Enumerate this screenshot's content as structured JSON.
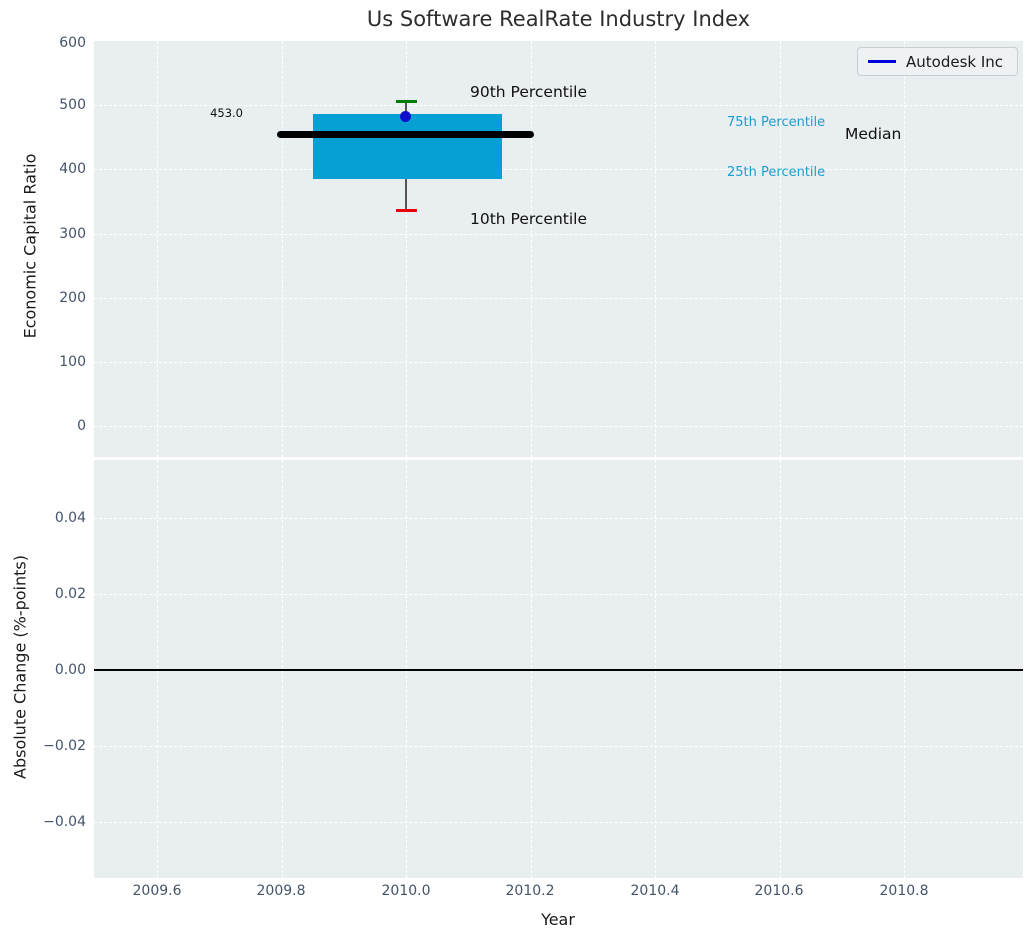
{
  "title": "Us Software RealRate Industry Index",
  "legend": {
    "label": "Autodesk Inc",
    "line_color": "#0000dd"
  },
  "colors": {
    "plot_background": "#e9eef0",
    "grid": "#ffffff",
    "box_fill": "#06a0d4",
    "median_line": "#000000",
    "whisker": "#555555",
    "p90_cap": "#007d02",
    "p10_cap": "#e8000b",
    "company_dot": "#0e0ecd",
    "percentile_text": "#1a9fd0",
    "tick_text": "#44546a"
  },
  "x_axis": {
    "label": "Year",
    "tick_labels": [
      "2009.6",
      "2009.8",
      "2010.0",
      "2010.2",
      "2010.4",
      "2010.6",
      "2010.8"
    ],
    "xlim": [
      2009.5,
      2010.99
    ]
  },
  "chart_data": [
    {
      "type": "boxplot",
      "title": "Us Software RealRate Industry Index",
      "xlabel": "Year",
      "ylabel": "Economic Capital Ratio",
      "ylim": [
        -50,
        600
      ],
      "ytick_labels": [
        "600",
        "500",
        "400",
        "300",
        "200",
        "100",
        "0"
      ],
      "yticks": [
        600,
        500,
        400,
        300,
        200,
        100,
        0
      ],
      "grid": "dashed-white",
      "box": {
        "x": 2010.0,
        "p90": 505,
        "p75": 483,
        "median": 453.0,
        "p25": 385,
        "p10": 336,
        "box_x_span": [
          2009.85,
          2010.15
        ],
        "median_x_span": [
          2009.79,
          2010.21
        ]
      },
      "company_point": {
        "name": "Autodesk Inc",
        "x": 2010.0,
        "y": 484
      },
      "annotations": {
        "median_value": "453.0",
        "p90_label": "90th Percentile",
        "p10_label": "10th Percentile",
        "p75_label": "75th Percentile",
        "p25_label": "25th Percentile",
        "median_label": "Median"
      }
    },
    {
      "type": "line",
      "ylabel": "Absolute Change (%-points)",
      "ylim": [
        -0.055,
        0.055
      ],
      "ytick_labels": [
        "0.04",
        "0.02",
        "0.00",
        "−0.02",
        "−0.04"
      ],
      "yticks": [
        0.04,
        0.02,
        0.0,
        -0.02,
        -0.04
      ],
      "zero_line": 0.0,
      "grid": "dashed-white",
      "series": []
    }
  ]
}
